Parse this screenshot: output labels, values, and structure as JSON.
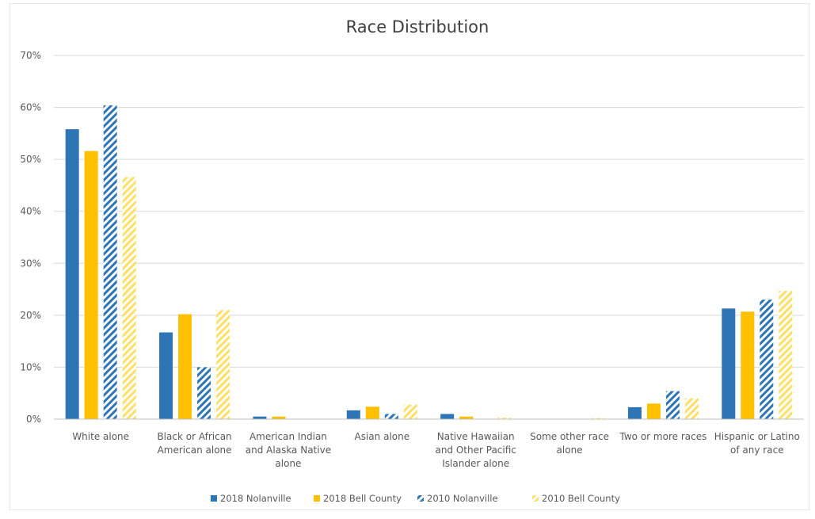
{
  "chart_data": {
    "type": "bar",
    "title": "Race Distribution",
    "xlabel": "",
    "ylabel": "",
    "ylim": [
      0,
      70
    ],
    "yticks": [
      "0%",
      "10%",
      "20%",
      "30%",
      "40%",
      "50%",
      "60%",
      "70%"
    ],
    "grid": true,
    "legend_position": "bottom",
    "categories": [
      "White alone",
      "Black or African American alone",
      "American Indian and Alaska Native alone",
      "Asian alone",
      "Native Hawaiian and Other Pacific Islander alone",
      "Some other race alone",
      "Two or more races",
      "Hispanic or Latino of any race"
    ],
    "category_lines": [
      [
        "White alone"
      ],
      [
        "Black or African",
        "American alone"
      ],
      [
        "American Indian",
        "and Alaska Native",
        "alone"
      ],
      [
        "Asian alone"
      ],
      [
        "Native Hawaiian",
        "and Other Pacific",
        "Islander alone"
      ],
      [
        "Some other race",
        "alone"
      ],
      [
        "Two or more races"
      ],
      [
        "Hispanic or Latino",
        "of any race"
      ]
    ],
    "series": [
      {
        "name": "2018 Nolanville",
        "color": "#2e75b6",
        "pattern": "solid",
        "values": [
          55.8,
          16.7,
          0.5,
          1.7,
          1.0,
          0.0,
          2.3,
          21.3
        ]
      },
      {
        "name": "2018 Bell County",
        "color": "#ffc000",
        "pattern": "solid",
        "values": [
          51.6,
          20.2,
          0.5,
          2.4,
          0.5,
          0.0,
          3.0,
          20.7
        ]
      },
      {
        "name": "2010 Nolanville",
        "color": "#2e75b6",
        "pattern": "hatched",
        "values": [
          60.4,
          10.0,
          0.0,
          1.0,
          0.0,
          0.0,
          5.4,
          23.0
        ]
      },
      {
        "name": "2010 Bell County",
        "color": "#ffe066",
        "pattern": "hatched",
        "values": [
          46.6,
          21.0,
          0.0,
          2.8,
          0.3,
          0.2,
          4.0,
          24.7
        ]
      }
    ]
  }
}
